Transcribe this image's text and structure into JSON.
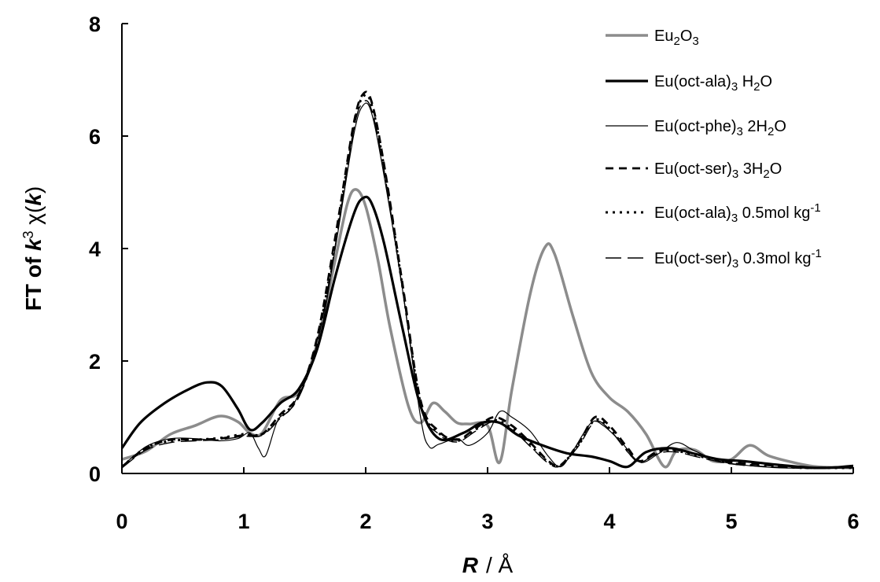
{
  "chart_data": {
    "type": "line",
    "title": "",
    "xlabel": "R",
    "xlabel_unit": "/ Å",
    "ylabel": {
      "prefix": "FT of ",
      "k": "k",
      "exp": "3",
      "chi": " χ(",
      "k2": "k",
      "close": ")"
    },
    "xlim": [
      0,
      6
    ],
    "ylim": [
      0,
      8
    ],
    "xticks": [
      "0",
      "1",
      "2",
      "3",
      "4",
      "5",
      "6"
    ],
    "yticks": [
      "0",
      "2",
      "4",
      "6",
      "8"
    ],
    "grid": false,
    "legend_position": "top-right",
    "series": [
      {
        "name": "Eu2O3",
        "legend": [
          [
            "Eu",
            ""
          ],
          [
            "2",
            "sub"
          ],
          [
            "O",
            ""
          ],
          [
            "3",
            "sub"
          ]
        ],
        "color": "#8c8c8c",
        "width": 3.5,
        "dash": "",
        "points": [
          [
            0,
            0.25
          ],
          [
            0.2,
            0.4
          ],
          [
            0.4,
            0.7
          ],
          [
            0.6,
            0.85
          ],
          [
            0.8,
            1.02
          ],
          [
            0.95,
            0.92
          ],
          [
            1.05,
            0.72
          ],
          [
            1.15,
            0.72
          ],
          [
            1.3,
            1.3
          ],
          [
            1.45,
            1.45
          ],
          [
            1.6,
            2.3
          ],
          [
            1.75,
            3.8
          ],
          [
            1.85,
            4.8
          ],
          [
            1.92,
            5.05
          ],
          [
            2.0,
            4.75
          ],
          [
            2.1,
            3.8
          ],
          [
            2.2,
            2.6
          ],
          [
            2.35,
            1.2
          ],
          [
            2.45,
            0.9
          ],
          [
            2.55,
            1.25
          ],
          [
            2.65,
            1.1
          ],
          [
            2.75,
            0.9
          ],
          [
            2.85,
            0.88
          ],
          [
            3.0,
            0.85
          ],
          [
            3.1,
            0.2
          ],
          [
            3.2,
            1.5
          ],
          [
            3.35,
            3.2
          ],
          [
            3.47,
            4.02
          ],
          [
            3.55,
            3.9
          ],
          [
            3.7,
            2.8
          ],
          [
            3.85,
            1.8
          ],
          [
            4.0,
            1.35
          ],
          [
            4.15,
            1.1
          ],
          [
            4.3,
            0.7
          ],
          [
            4.45,
            0.12
          ],
          [
            4.55,
            0.4
          ],
          [
            4.7,
            0.42
          ],
          [
            4.85,
            0.22
          ],
          [
            5.0,
            0.25
          ],
          [
            5.15,
            0.5
          ],
          [
            5.3,
            0.32
          ],
          [
            5.5,
            0.2
          ],
          [
            5.7,
            0.12
          ],
          [
            6.0,
            0.1
          ]
        ]
      },
      {
        "name": "Eu(oct-ala)3 H2O",
        "legend": [
          [
            "Eu(oct-ala)",
            ""
          ],
          [
            "3",
            "sub"
          ],
          [
            " H",
            ""
          ],
          [
            "2",
            "sub"
          ],
          [
            "O",
            ""
          ]
        ],
        "color": "#000000",
        "width": 3.2,
        "dash": "",
        "points": [
          [
            0,
            0.45
          ],
          [
            0.15,
            0.9
          ],
          [
            0.35,
            1.25
          ],
          [
            0.55,
            1.5
          ],
          [
            0.7,
            1.62
          ],
          [
            0.82,
            1.55
          ],
          [
            0.95,
            1.15
          ],
          [
            1.05,
            0.78
          ],
          [
            1.15,
            0.9
          ],
          [
            1.3,
            1.25
          ],
          [
            1.45,
            1.5
          ],
          [
            1.6,
            2.2
          ],
          [
            1.75,
            3.5
          ],
          [
            1.9,
            4.6
          ],
          [
            1.98,
            4.9
          ],
          [
            2.05,
            4.8
          ],
          [
            2.15,
            4.1
          ],
          [
            2.3,
            2.6
          ],
          [
            2.45,
            1.2
          ],
          [
            2.6,
            0.62
          ],
          [
            2.8,
            0.72
          ],
          [
            2.95,
            0.9
          ],
          [
            3.1,
            0.9
          ],
          [
            3.25,
            0.68
          ],
          [
            3.45,
            0.5
          ],
          [
            3.65,
            0.36
          ],
          [
            3.85,
            0.3
          ],
          [
            4.0,
            0.22
          ],
          [
            4.15,
            0.12
          ],
          [
            4.3,
            0.38
          ],
          [
            4.5,
            0.45
          ],
          [
            4.7,
            0.35
          ],
          [
            4.9,
            0.25
          ],
          [
            5.1,
            0.22
          ],
          [
            5.4,
            0.15
          ],
          [
            5.7,
            0.1
          ],
          [
            6.0,
            0.12
          ]
        ]
      },
      {
        "name": "Eu(oct-phe)3 2H2O",
        "legend": [
          [
            "Eu(oct-phe)",
            ""
          ],
          [
            "3",
            "sub"
          ],
          [
            " 2H",
            ""
          ],
          [
            "2",
            "sub"
          ],
          [
            "O",
            ""
          ]
        ],
        "color": "#000000",
        "width": 1.2,
        "dash": "",
        "points": [
          [
            0,
            0.12
          ],
          [
            0.2,
            0.48
          ],
          [
            0.4,
            0.62
          ],
          [
            0.6,
            0.62
          ],
          [
            0.8,
            0.58
          ],
          [
            0.95,
            0.62
          ],
          [
            1.05,
            0.72
          ],
          [
            1.12,
            0.45
          ],
          [
            1.18,
            0.32
          ],
          [
            1.28,
            0.95
          ],
          [
            1.4,
            1.2
          ],
          [
            1.6,
            2.2
          ],
          [
            1.75,
            4.0
          ],
          [
            1.9,
            6.0
          ],
          [
            1.98,
            6.55
          ],
          [
            2.05,
            6.4
          ],
          [
            2.15,
            5.3
          ],
          [
            2.3,
            3.3
          ],
          [
            2.45,
            1.0
          ],
          [
            2.52,
            0.48
          ],
          [
            2.6,
            0.52
          ],
          [
            2.75,
            0.62
          ],
          [
            2.85,
            0.5
          ],
          [
            3.0,
            0.72
          ],
          [
            3.1,
            1.1
          ],
          [
            3.2,
            1.0
          ],
          [
            3.35,
            0.75
          ],
          [
            3.5,
            0.3
          ],
          [
            3.6,
            0.12
          ],
          [
            3.7,
            0.4
          ],
          [
            3.85,
            0.9
          ],
          [
            3.95,
            0.85
          ],
          [
            4.1,
            0.55
          ],
          [
            4.25,
            0.2
          ],
          [
            4.4,
            0.35
          ],
          [
            4.55,
            0.55
          ],
          [
            4.7,
            0.4
          ],
          [
            4.9,
            0.22
          ],
          [
            5.1,
            0.15
          ],
          [
            5.4,
            0.1
          ],
          [
            5.7,
            0.1
          ],
          [
            6.0,
            0.15
          ]
        ]
      },
      {
        "name": "Eu(oct-ser)3 3H2O",
        "legend": [
          [
            "Eu(oct-ser)",
            ""
          ],
          [
            "3",
            "sub"
          ],
          [
            " 3H",
            ""
          ],
          [
            "2",
            "sub"
          ],
          [
            "O",
            ""
          ]
        ],
        "color": "#000000",
        "width": 2.8,
        "dash": "10 7",
        "points": [
          [
            0,
            0.12
          ],
          [
            0.2,
            0.45
          ],
          [
            0.4,
            0.6
          ],
          [
            0.6,
            0.6
          ],
          [
            0.8,
            0.62
          ],
          [
            1.0,
            0.68
          ],
          [
            1.15,
            0.7
          ],
          [
            1.3,
            1.05
          ],
          [
            1.45,
            1.4
          ],
          [
            1.6,
            2.4
          ],
          [
            1.75,
            4.2
          ],
          [
            1.9,
            6.2
          ],
          [
            1.98,
            6.75
          ],
          [
            2.05,
            6.6
          ],
          [
            2.15,
            5.5
          ],
          [
            2.3,
            3.4
          ],
          [
            2.45,
            1.3
          ],
          [
            2.6,
            0.75
          ],
          [
            2.75,
            0.6
          ],
          [
            2.9,
            0.8
          ],
          [
            3.05,
            1.0
          ],
          [
            3.2,
            0.85
          ],
          [
            3.35,
            0.55
          ],
          [
            3.5,
            0.22
          ],
          [
            3.6,
            0.15
          ],
          [
            3.75,
            0.55
          ],
          [
            3.88,
            1.0
          ],
          [
            4.0,
            0.85
          ],
          [
            4.15,
            0.45
          ],
          [
            4.25,
            0.22
          ],
          [
            4.4,
            0.4
          ],
          [
            4.55,
            0.42
          ],
          [
            4.75,
            0.32
          ],
          [
            5.0,
            0.2
          ],
          [
            5.3,
            0.15
          ],
          [
            5.6,
            0.1
          ],
          [
            6.0,
            0.12
          ]
        ]
      },
      {
        "name": "Eu(oct-ala)3 0.5mol kg-1",
        "legend": [
          [
            "Eu(oct-ala)",
            ""
          ],
          [
            "3",
            "sub"
          ],
          [
            " 0.5mol kg",
            ""
          ],
          [
            "-1",
            "sup"
          ]
        ],
        "color": "#000000",
        "width": 3.0,
        "dash": "3 6",
        "points": [
          [
            0,
            0.12
          ],
          [
            0.2,
            0.46
          ],
          [
            0.4,
            0.58
          ],
          [
            0.6,
            0.6
          ],
          [
            0.8,
            0.63
          ],
          [
            1.0,
            0.7
          ],
          [
            1.15,
            0.7
          ],
          [
            1.3,
            1.0
          ],
          [
            1.45,
            1.38
          ],
          [
            1.6,
            2.35
          ],
          [
            1.75,
            4.1
          ],
          [
            1.9,
            6.15
          ],
          [
            1.98,
            6.7
          ],
          [
            2.05,
            6.55
          ],
          [
            2.15,
            5.45
          ],
          [
            2.3,
            3.35
          ],
          [
            2.45,
            1.25
          ],
          [
            2.6,
            0.72
          ],
          [
            2.75,
            0.58
          ],
          [
            2.9,
            0.78
          ],
          [
            3.05,
            0.95
          ],
          [
            3.2,
            0.8
          ],
          [
            3.35,
            0.5
          ],
          [
            3.5,
            0.2
          ],
          [
            3.6,
            0.15
          ],
          [
            3.75,
            0.52
          ],
          [
            3.88,
            0.95
          ],
          [
            4.0,
            0.8
          ],
          [
            4.15,
            0.4
          ],
          [
            4.25,
            0.2
          ],
          [
            4.4,
            0.38
          ],
          [
            4.55,
            0.4
          ],
          [
            4.75,
            0.3
          ],
          [
            5.0,
            0.18
          ],
          [
            5.3,
            0.13
          ],
          [
            5.6,
            0.1
          ],
          [
            6.0,
            0.1
          ]
        ]
      },
      {
        "name": "Eu(oct-ser)3 0.3mol kg-1",
        "legend": [
          [
            "Eu(oct-ser)",
            ""
          ],
          [
            "3",
            "sub"
          ],
          [
            " 0.3mol kg",
            ""
          ],
          [
            "-1",
            "sup"
          ]
        ],
        "color": "#000000",
        "width": 1.4,
        "dash": "20 8",
        "points": [
          [
            0,
            0.1
          ],
          [
            0.2,
            0.42
          ],
          [
            0.4,
            0.55
          ],
          [
            0.6,
            0.58
          ],
          [
            0.8,
            0.6
          ],
          [
            1.0,
            0.66
          ],
          [
            1.15,
            0.68
          ],
          [
            1.3,
            0.98
          ],
          [
            1.45,
            1.35
          ],
          [
            1.6,
            2.3
          ],
          [
            1.75,
            4.05
          ],
          [
            1.9,
            6.1
          ],
          [
            1.98,
            6.6
          ],
          [
            2.05,
            6.45
          ],
          [
            2.15,
            5.4
          ],
          [
            2.3,
            3.3
          ],
          [
            2.45,
            1.2
          ],
          [
            2.6,
            0.7
          ],
          [
            2.75,
            0.56
          ],
          [
            2.9,
            0.75
          ],
          [
            3.05,
            0.92
          ],
          [
            3.2,
            0.78
          ],
          [
            3.35,
            0.48
          ],
          [
            3.5,
            0.18
          ],
          [
            3.6,
            0.14
          ],
          [
            3.75,
            0.5
          ],
          [
            3.88,
            0.92
          ],
          [
            4.0,
            0.78
          ],
          [
            4.15,
            0.38
          ],
          [
            4.25,
            0.2
          ],
          [
            4.4,
            0.36
          ],
          [
            4.55,
            0.38
          ],
          [
            4.75,
            0.28
          ],
          [
            5.0,
            0.17
          ],
          [
            5.3,
            0.12
          ],
          [
            5.6,
            0.1
          ],
          [
            6.0,
            0.1
          ]
        ]
      }
    ]
  }
}
